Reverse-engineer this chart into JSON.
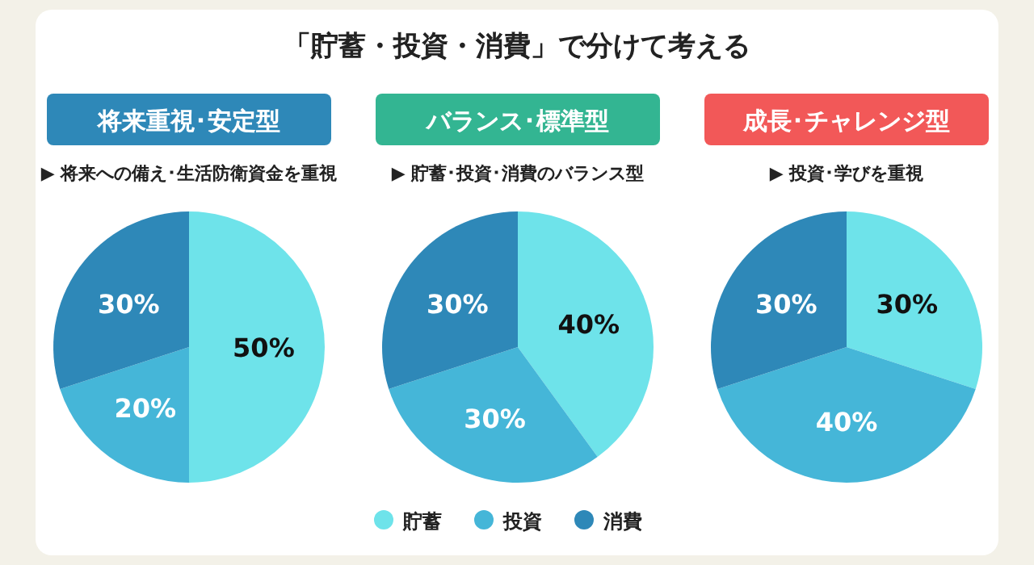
{
  "chart_data": [
    {
      "type": "other",
      "title": "「貯蓄・投資・消費」で分けて考える"
    },
    {
      "type": "pie",
      "title": "将来重視･安定型",
      "subtitle": "▶ 将来への備え･生活防衛資金を重視",
      "categories": [
        null,
        null,
        null
      ],
      "values": [
        50,
        20,
        30
      ],
      "colors": [
        "#6ee3ea",
        "#45b6d8",
        "#2e88b8"
      ],
      "value_labels": [
        "50%",
        "20%",
        "30%"
      ],
      "legend": false
    },
    {
      "type": "pie",
      "title": "バランス･標準型",
      "subtitle": "▶ 貯蓄･投資･消費のバランス型",
      "categories": [
        "貯蓄",
        "投資",
        "消費"
      ],
      "values": [
        40,
        30,
        30
      ],
      "colors": [
        "#6ee3ea",
        "#45b6d8",
        "#2e88b8"
      ],
      "value_labels": [
        "40%",
        "30%",
        "30%"
      ],
      "legend": "bottom"
    },
    {
      "type": "pie",
      "title": "成長･チャレンジ型",
      "subtitle": "▶ 投資･学びを重視",
      "categories": [
        null,
        null,
        null
      ],
      "values": [
        30,
        40,
        30
      ],
      "colors": [
        "#6ee3ea",
        "#45b6d8",
        "#2e88b8"
      ],
      "value_labels": [
        "30%",
        "40%",
        "30%"
      ],
      "legend": false
    }
  ]
}
